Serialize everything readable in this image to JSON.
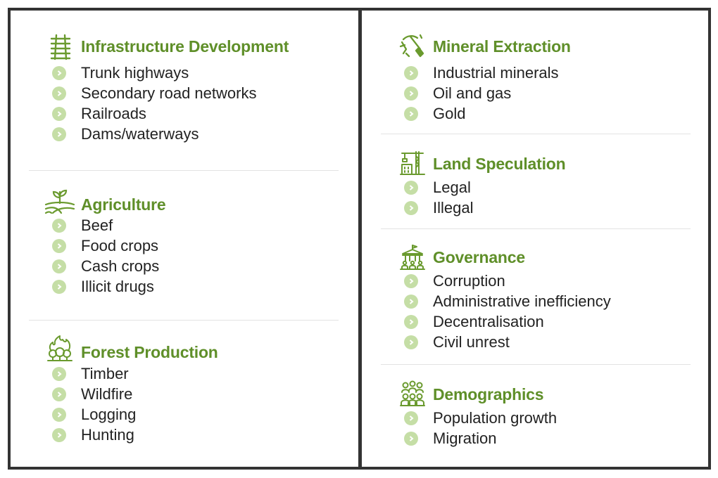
{
  "colors": {
    "title": "#5f8f29",
    "bullet": "#c5dea6",
    "border": "#333333",
    "text": "#222222"
  },
  "left_column": [
    {
      "icon": "railroad-icon",
      "title": "Infrastructure Development",
      "items": [
        "Trunk highways",
        "Secondary road networks",
        "Railroads",
        "Dams/waterways"
      ]
    },
    {
      "icon": "plant-field-icon",
      "title": "Agriculture",
      "items": [
        "Beef",
        "Food crops",
        "Cash crops",
        "Illicit drugs"
      ]
    },
    {
      "icon": "forest-fire-icon",
      "title": "Forest Production",
      "items": [
        "Timber",
        "Wildfire",
        "Logging",
        "Hunting"
      ]
    }
  ],
  "right_column": [
    {
      "icon": "pickaxe-icon",
      "title": "Mineral Extraction",
      "items": [
        "Industrial minerals",
        "Oil and gas",
        "Gold"
      ]
    },
    {
      "icon": "construction-crane-icon",
      "title": "Land Speculation",
      "items": [
        "Legal",
        "Illegal"
      ]
    },
    {
      "icon": "government-building-icon",
      "title": "Governance",
      "items": [
        "Corruption",
        "Administrative inefficiency",
        "Decentralisation",
        "Civil unrest"
      ]
    },
    {
      "icon": "people-group-icon",
      "title": "Demographics",
      "items": [
        "Population growth",
        "Migration"
      ]
    }
  ]
}
